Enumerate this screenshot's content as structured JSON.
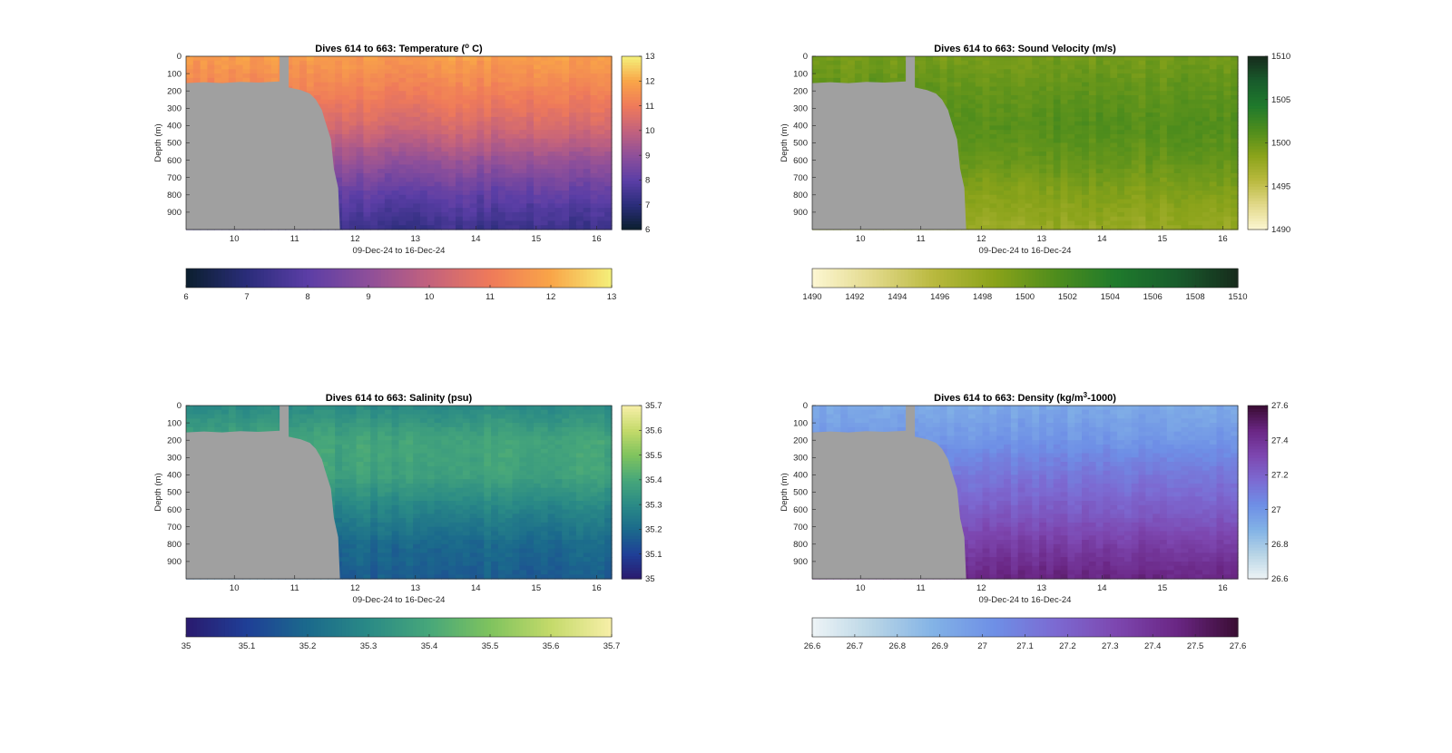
{
  "chart_data": [
    {
      "type": "heatmap",
      "title": "Dives 614 to 663: Temperature (° C)",
      "title_main": "Dives 614 to 663: Temperature (",
      "title_sup": "o",
      "title_tail": " C)",
      "xlabel": "09-Dec-24 to 16-Dec-24",
      "ylabel": "Depth (m)",
      "x_ticks": [
        "10",
        "11",
        "12",
        "13",
        "14",
        "15",
        "16"
      ],
      "y_ticks": [
        "0",
        "100",
        "200",
        "300",
        "400",
        "500",
        "600",
        "700",
        "800",
        "900"
      ],
      "xlim": [
        9.2,
        16.25
      ],
      "ylim": [
        0,
        1000
      ],
      "y_reversed": true,
      "colorbar_ticks": [
        "6",
        "7",
        "8",
        "9",
        "10",
        "11",
        "12",
        "13"
      ],
      "clim": [
        6,
        13
      ],
      "colormap": [
        "#0b1f2e",
        "#2a2d7a",
        "#5b3ea6",
        "#8e4f9a",
        "#c3627d",
        "#ef7a5a",
        "#f9a548",
        "#f4f07a"
      ],
      "land_color": "#a0a0a0",
      "profile": [
        {
          "depth": 0,
          "value": 11.8
        },
        {
          "depth": 200,
          "value": 11.2
        },
        {
          "depth": 400,
          "value": 10.4
        },
        {
          "depth": 600,
          "value": 9.2
        },
        {
          "depth": 800,
          "value": 8.1
        },
        {
          "depth": 980,
          "value": 7.4
        }
      ]
    },
    {
      "type": "heatmap",
      "title": "Dives 614 to 663: Sound Velocity (m/s)",
      "title_main": "Dives 614 to 663: Sound Velocity (m/s)",
      "xlabel": "09-Dec-24 to 16-Dec-24",
      "ylabel": "Depth (m)",
      "x_ticks": [
        "10",
        "11",
        "12",
        "13",
        "14",
        "15",
        "16"
      ],
      "y_ticks": [
        "0",
        "100",
        "200",
        "300",
        "400",
        "500",
        "600",
        "700",
        "800",
        "900"
      ],
      "xlim": [
        9.2,
        16.25
      ],
      "ylim": [
        0,
        1000
      ],
      "y_reversed": true,
      "colorbar_ticks": [
        "1490",
        "1495",
        "1500",
        "1505",
        "1510"
      ],
      "colorbar_h_ticks": [
        "1490",
        "1492",
        "1494",
        "1496",
        "1498",
        "1500",
        "1502",
        "1504",
        "1506",
        "1508",
        "1510"
      ],
      "clim": [
        1490,
        1510
      ],
      "colormap": [
        "#fdf7d3",
        "#e2d98a",
        "#b9b93e",
        "#8aa31a",
        "#4f8d1c",
        "#1f7a2c",
        "#185c2c",
        "#172b1c"
      ],
      "land_color": "#a0a0a0",
      "profile": [
        {
          "depth": 0,
          "value": 1499.5
        },
        {
          "depth": 200,
          "value": 1500.5
        },
        {
          "depth": 400,
          "value": 1501.2
        },
        {
          "depth": 600,
          "value": 1500.3
        },
        {
          "depth": 800,
          "value": 1498.8
        },
        {
          "depth": 980,
          "value": 1497.8
        }
      ]
    },
    {
      "type": "heatmap",
      "title": "Dives 614 to 663: Salinity (psu)",
      "title_main": "Dives 614 to 663: Salinity (psu)",
      "xlabel": "09-Dec-24 to 16-Dec-24",
      "ylabel": "Depth (m)",
      "x_ticks": [
        "10",
        "11",
        "12",
        "13",
        "14",
        "15",
        "16"
      ],
      "y_ticks": [
        "0",
        "100",
        "200",
        "300",
        "400",
        "500",
        "600",
        "700",
        "800",
        "900"
      ],
      "xlim": [
        9.2,
        16.25
      ],
      "ylim": [
        0,
        1000
      ],
      "y_reversed": true,
      "colorbar_ticks": [
        "35",
        "35.1",
        "35.2",
        "35.3",
        "35.4",
        "35.5",
        "35.6",
        "35.7"
      ],
      "clim": [
        35,
        35.7
      ],
      "colormap": [
        "#2a1a6e",
        "#1f3f97",
        "#1b6a8c",
        "#2a8a86",
        "#47a77a",
        "#7fc35e",
        "#c4da6a",
        "#f7efa8"
      ],
      "land_color": "#a0a0a0",
      "profile": [
        {
          "depth": 0,
          "value": 35.3
        },
        {
          "depth": 200,
          "value": 35.39
        },
        {
          "depth": 400,
          "value": 35.38
        },
        {
          "depth": 600,
          "value": 35.28
        },
        {
          "depth": 800,
          "value": 35.2
        },
        {
          "depth": 980,
          "value": 35.17
        }
      ]
    },
    {
      "type": "heatmap",
      "title": "Dives 614 to 663: Density (kg/m³-1000)",
      "title_main": "Dives 614 to 663: Density (kg/m",
      "title_sup": "3",
      "title_tail": "-1000)",
      "xlabel": "09-Dec-24 to 16-Dec-24",
      "ylabel": "Depth (m)",
      "x_ticks": [
        "10",
        "11",
        "12",
        "13",
        "14",
        "15",
        "16"
      ],
      "y_ticks": [
        "0",
        "100",
        "200",
        "300",
        "400",
        "500",
        "600",
        "700",
        "800",
        "900"
      ],
      "xlim": [
        9.2,
        16.25
      ],
      "ylim": [
        0,
        1000
      ],
      "y_reversed": true,
      "colorbar_ticks": [
        "26.6",
        "26.8",
        "27",
        "27.2",
        "27.4",
        "27.6"
      ],
      "colorbar_h_ticks": [
        "26.6",
        "26.7",
        "26.8",
        "26.9",
        "27",
        "27.1",
        "27.2",
        "27.3",
        "27.4",
        "27.5",
        "27.6"
      ],
      "clim": [
        26.6,
        27.6
      ],
      "colormap": [
        "#eef4f6",
        "#b8d5e6",
        "#82b2e6",
        "#6e8fe6",
        "#7c6ad2",
        "#7d47b0",
        "#6a2684",
        "#3a0d33"
      ],
      "land_color": "#a0a0a0",
      "profile": [
        {
          "depth": 0,
          "value": 26.92
        },
        {
          "depth": 200,
          "value": 27.0
        },
        {
          "depth": 400,
          "value": 27.12
        },
        {
          "depth": 600,
          "value": 27.22
        },
        {
          "depth": 800,
          "value": 27.35
        },
        {
          "depth": 980,
          "value": 27.45
        }
      ]
    }
  ],
  "seafloor": {
    "description_free": true,
    "points": [
      {
        "x": 9.2,
        "depth": 155
      },
      {
        "x": 9.5,
        "depth": 150
      },
      {
        "x": 9.8,
        "depth": 155
      },
      {
        "x": 10.1,
        "depth": 148
      },
      {
        "x": 10.4,
        "depth": 152
      },
      {
        "x": 10.75,
        "depth": 145
      },
      {
        "x": 10.75,
        "depth": 0
      },
      {
        "x": 10.9,
        "depth": 0
      },
      {
        "x": 10.9,
        "depth": 180
      },
      {
        "x": 11.1,
        "depth": 195
      },
      {
        "x": 11.25,
        "depth": 215
      },
      {
        "x": 11.35,
        "depth": 250
      },
      {
        "x": 11.45,
        "depth": 310
      },
      {
        "x": 11.5,
        "depth": 370
      },
      {
        "x": 11.6,
        "depth": 480
      },
      {
        "x": 11.65,
        "depth": 650
      },
      {
        "x": 11.72,
        "depth": 760
      },
      {
        "x": 11.75,
        "depth": 1000
      }
    ]
  }
}
